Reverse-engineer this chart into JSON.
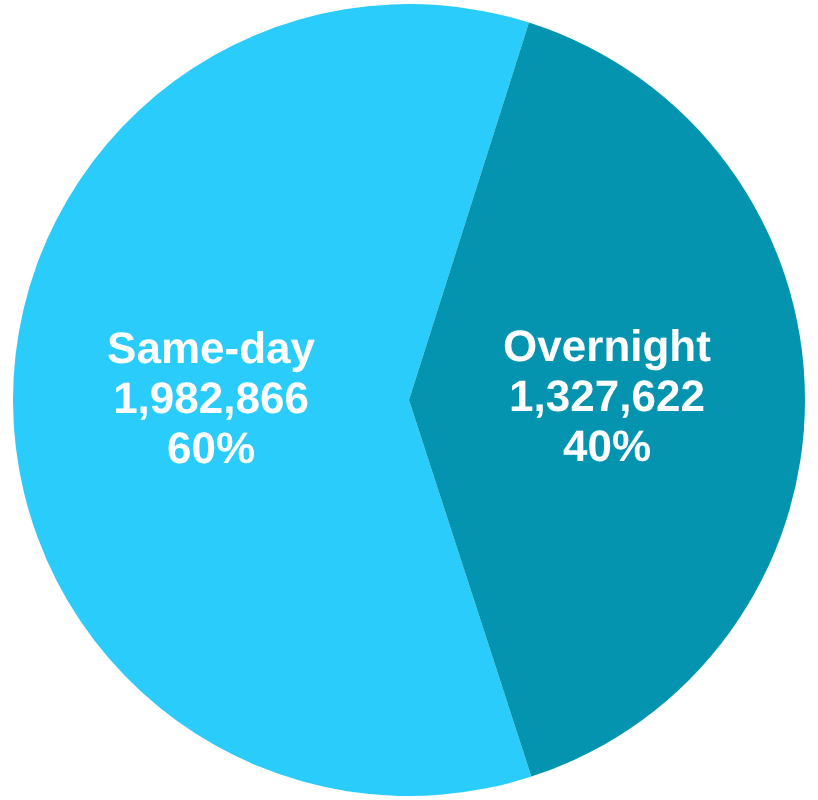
{
  "chart_data": {
    "type": "pie",
    "categories": [
      "Same-day",
      "Overnight"
    ],
    "values": [
      1982866,
      1327622
    ],
    "colors": [
      "#29ccfb",
      "#0594b0"
    ],
    "value_labels": [
      "1,982,866\n60%",
      "1,327,622\n40%"
    ]
  }
}
